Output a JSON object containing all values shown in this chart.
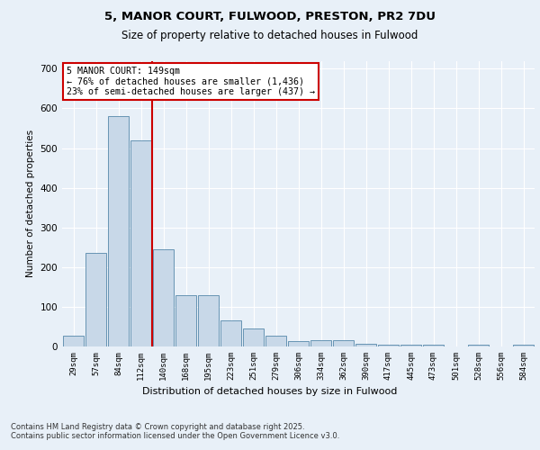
{
  "title_line1": "5, MANOR COURT, FULWOOD, PRESTON, PR2 7DU",
  "title_line2": "Size of property relative to detached houses in Fulwood",
  "xlabel": "Distribution of detached houses by size in Fulwood",
  "ylabel": "Number of detached properties",
  "categories": [
    "29sqm",
    "57sqm",
    "84sqm",
    "112sqm",
    "140sqm",
    "168sqm",
    "195sqm",
    "223sqm",
    "251sqm",
    "279sqm",
    "306sqm",
    "334sqm",
    "362sqm",
    "390sqm",
    "417sqm",
    "445sqm",
    "473sqm",
    "501sqm",
    "528sqm",
    "556sqm",
    "584sqm"
  ],
  "values": [
    28,
    235,
    580,
    520,
    245,
    130,
    130,
    65,
    45,
    27,
    13,
    15,
    15,
    7,
    5,
    5,
    5,
    0,
    5,
    0,
    5
  ],
  "bar_color": "#c8d8e8",
  "bar_edge_color": "#5588aa",
  "vline_x_idx": 4,
  "vline_color": "#cc0000",
  "annotation_text": "5 MANOR COURT: 149sqm\n← 76% of detached houses are smaller (1,436)\n23% of semi-detached houses are larger (437) →",
  "annotation_box_color": "#cc0000",
  "ylim": [
    0,
    720
  ],
  "yticks": [
    0,
    100,
    200,
    300,
    400,
    500,
    600,
    700
  ],
  "background_color": "#e8f0f8",
  "grid_color": "#ffffff",
  "footnote": "Contains HM Land Registry data © Crown copyright and database right 2025.\nContains public sector information licensed under the Open Government Licence v3.0."
}
